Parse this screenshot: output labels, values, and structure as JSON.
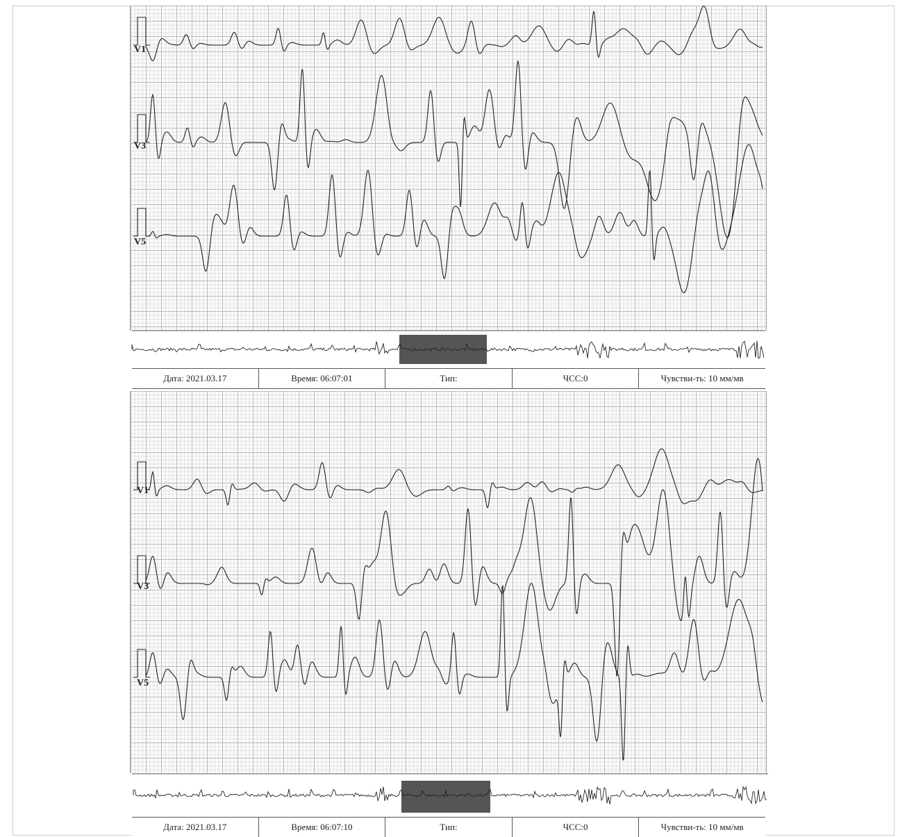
{
  "strips": [
    {
      "leads": [
        "V1",
        "V3",
        "V5"
      ],
      "footer": {
        "date": "Дата: 2021.03.17",
        "time": "Время: 06:07:01",
        "type": "Тип:",
        "hr": "ЧСС:0",
        "sensitivity": "Чувстви-ть: 10 мм/мв"
      }
    },
    {
      "leads": [
        "V1",
        "V3",
        "V5"
      ],
      "footer": {
        "date": "Дата: 2021.03.17",
        "time": "Время: 06:07:10",
        "type": "Тип:",
        "hr": "ЧСС:0",
        "sensitivity": "Чувстви-ть: 10 мм/мв"
      }
    }
  ]
}
